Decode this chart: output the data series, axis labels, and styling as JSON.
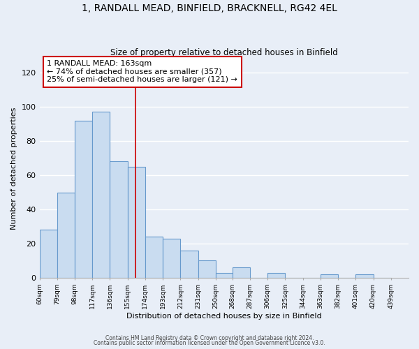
{
  "title": "1, RANDALL MEAD, BINFIELD, BRACKNELL, RG42 4EL",
  "subtitle": "Size of property relative to detached houses in Binfield",
  "xlabel": "Distribution of detached houses by size in Binfield",
  "ylabel": "Number of detached properties",
  "bar_left_edges": [
    60,
    79,
    98,
    117,
    136,
    155,
    174,
    193,
    212,
    231,
    250,
    268,
    287,
    306,
    325,
    344,
    363,
    382,
    401,
    420
  ],
  "bar_heights": [
    28,
    50,
    92,
    97,
    68,
    65,
    24,
    23,
    16,
    10,
    3,
    6,
    0,
    3,
    0,
    0,
    2,
    0,
    2,
    0
  ],
  "bin_width": 19,
  "tick_labels": [
    "60sqm",
    "79sqm",
    "98sqm",
    "117sqm",
    "136sqm",
    "155sqm",
    "174sqm",
    "193sqm",
    "212sqm",
    "231sqm",
    "250sqm",
    "268sqm",
    "287sqm",
    "306sqm",
    "325sqm",
    "344sqm",
    "363sqm",
    "382sqm",
    "401sqm",
    "420sqm",
    "439sqm"
  ],
  "ylim": [
    0,
    128
  ],
  "yticks": [
    0,
    20,
    40,
    60,
    80,
    100,
    120
  ],
  "bar_facecolor": "#c9dcf0",
  "bar_edgecolor": "#6699cc",
  "vline_x": 163.5,
  "vline_color": "#cc0000",
  "annotation_box_text": "1 RANDALL MEAD: 163sqm\n← 74% of detached houses are smaller (357)\n25% of semi-detached houses are larger (121) →",
  "background_color": "#e8eef7",
  "grid_color": "#ffffff",
  "footer_line1": "Contains HM Land Registry data © Crown copyright and database right 2024.",
  "footer_line2": "Contains public sector information licensed under the Open Government Licence v3.0."
}
